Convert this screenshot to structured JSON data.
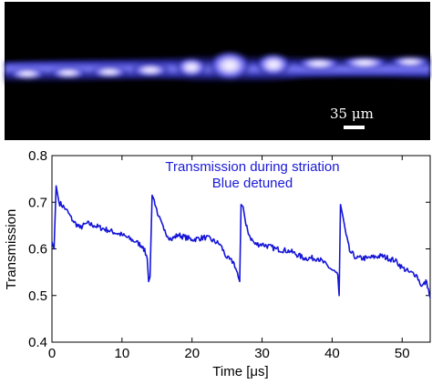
{
  "image_panel": {
    "scale_bar_label": "35 μm",
    "background_color": "#000000",
    "glow_color": "#5a5aff",
    "core_color": "#ffffff"
  },
  "chart_data": {
    "type": "line",
    "title": "",
    "xlabel": "Time [μs]",
    "ylabel": "Transmission",
    "xlim": [
      0,
      54
    ],
    "ylim": [
      0.4,
      0.8
    ],
    "xticks": [
      0,
      10,
      20,
      30,
      40,
      50
    ],
    "yticks": [
      0.4,
      0.5,
      0.6,
      0.7,
      0.8
    ],
    "xtick_labels": [
      "0",
      "10",
      "20",
      "30",
      "40",
      "50"
    ],
    "ytick_labels": [
      "0.4",
      "0.5",
      "0.6",
      "0.7",
      "0.8"
    ],
    "grid": false,
    "annotations": [
      "Transmission during striation",
      "Blue detuned"
    ],
    "series": [
      {
        "color": "#1515d8",
        "x": [
          0.0,
          0.3,
          0.6,
          1.0,
          2.0,
          3.0,
          4.0,
          5.0,
          6.0,
          8.0,
          10.0,
          12.0,
          13.0,
          13.6,
          13.8,
          14.0,
          14.3,
          14.6,
          15.2,
          16.0,
          17.0,
          18.0,
          20.0,
          22.0,
          24.0,
          25.0,
          26.0,
          26.6,
          26.8,
          27.0,
          27.3,
          27.7,
          28.3,
          29.0,
          30.0,
          32.0,
          34.0,
          36.0,
          38.0,
          40.0,
          40.8,
          41.0,
          41.2,
          41.6,
          42.0,
          42.5,
          43.5,
          45.0,
          47.0,
          49.0,
          50.0,
          51.0,
          52.0,
          52.8,
          53.5,
          54.0
        ],
        "y": [
          0.615,
          0.6,
          0.735,
          0.7,
          0.685,
          0.66,
          0.645,
          0.655,
          0.65,
          0.64,
          0.63,
          0.615,
          0.605,
          0.58,
          0.53,
          0.54,
          0.715,
          0.705,
          0.67,
          0.64,
          0.62,
          0.63,
          0.62,
          0.625,
          0.61,
          0.58,
          0.57,
          0.54,
          0.53,
          0.695,
          0.69,
          0.65,
          0.625,
          0.61,
          0.61,
          0.6,
          0.595,
          0.58,
          0.58,
          0.555,
          0.545,
          0.5,
          0.695,
          0.665,
          0.63,
          0.595,
          0.58,
          0.58,
          0.585,
          0.575,
          0.56,
          0.55,
          0.545,
          0.52,
          0.53,
          0.495
        ]
      }
    ]
  }
}
